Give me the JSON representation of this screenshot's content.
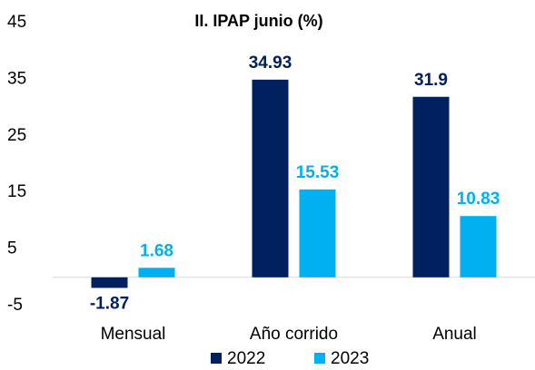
{
  "chart_data": {
    "type": "bar",
    "title": "II. IPAP junio (%)",
    "categories": [
      "Mensual",
      "Año corrido",
      "Anual"
    ],
    "series": [
      {
        "name": "2022",
        "color": "#002060",
        "values": [
          -1.87,
          34.93,
          31.9
        ]
      },
      {
        "name": "2023",
        "color": "#00b0f0",
        "values": [
          1.68,
          15.53,
          10.83
        ]
      }
    ],
    "ylim": [
      -5,
      45
    ],
    "yticks": [
      -5,
      5,
      15,
      25,
      35,
      45
    ],
    "grid": false,
    "legend": "bottom"
  }
}
